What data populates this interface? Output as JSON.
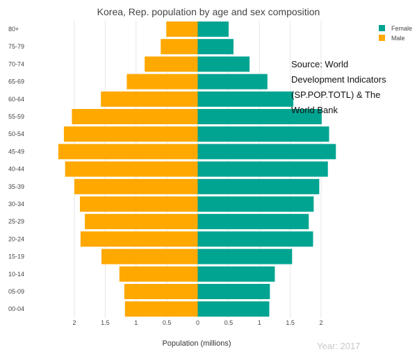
{
  "chart_data": {
    "type": "bar",
    "orientation": "horizontal",
    "title": "Korea, Rep. population by age and sex composition",
    "xlabel": "Population (millions)",
    "ylabel": "",
    "categories": [
      "80+",
      "75-79",
      "70-74",
      "65-69",
      "60-64",
      "55-59",
      "50-54",
      "45-49",
      "40-44",
      "35-39",
      "30-34",
      "25-29",
      "20-24",
      "15-19",
      "10-14",
      "05-09",
      "00-04"
    ],
    "series": [
      {
        "name": "Female",
        "color": "#00a491",
        "values": [
          0.5,
          0.58,
          0.84,
          1.13,
          1.55,
          2.01,
          2.13,
          2.24,
          2.11,
          1.97,
          1.88,
          1.8,
          1.87,
          1.53,
          1.25,
          1.17,
          1.16
        ]
      },
      {
        "name": "Male",
        "color": "#ffa800",
        "values": [
          0.51,
          0.6,
          0.86,
          1.15,
          1.57,
          2.04,
          2.17,
          2.26,
          2.15,
          2.0,
          1.91,
          1.83,
          1.9,
          1.56,
          1.27,
          1.19,
          1.18
        ]
      }
    ],
    "xticks": [
      "2",
      "1.5",
      "1",
      "0.5",
      "0",
      "0.5",
      "1",
      "1.5",
      "2"
    ],
    "xlim": [
      -2.3,
      2.3
    ],
    "grid": "vertical",
    "legend": {
      "placement": "top-right"
    },
    "annotation": "Source: World Development Indicators (SP.POP.TOTL) & The World Bank",
    "year_label": "Year: 2017"
  }
}
